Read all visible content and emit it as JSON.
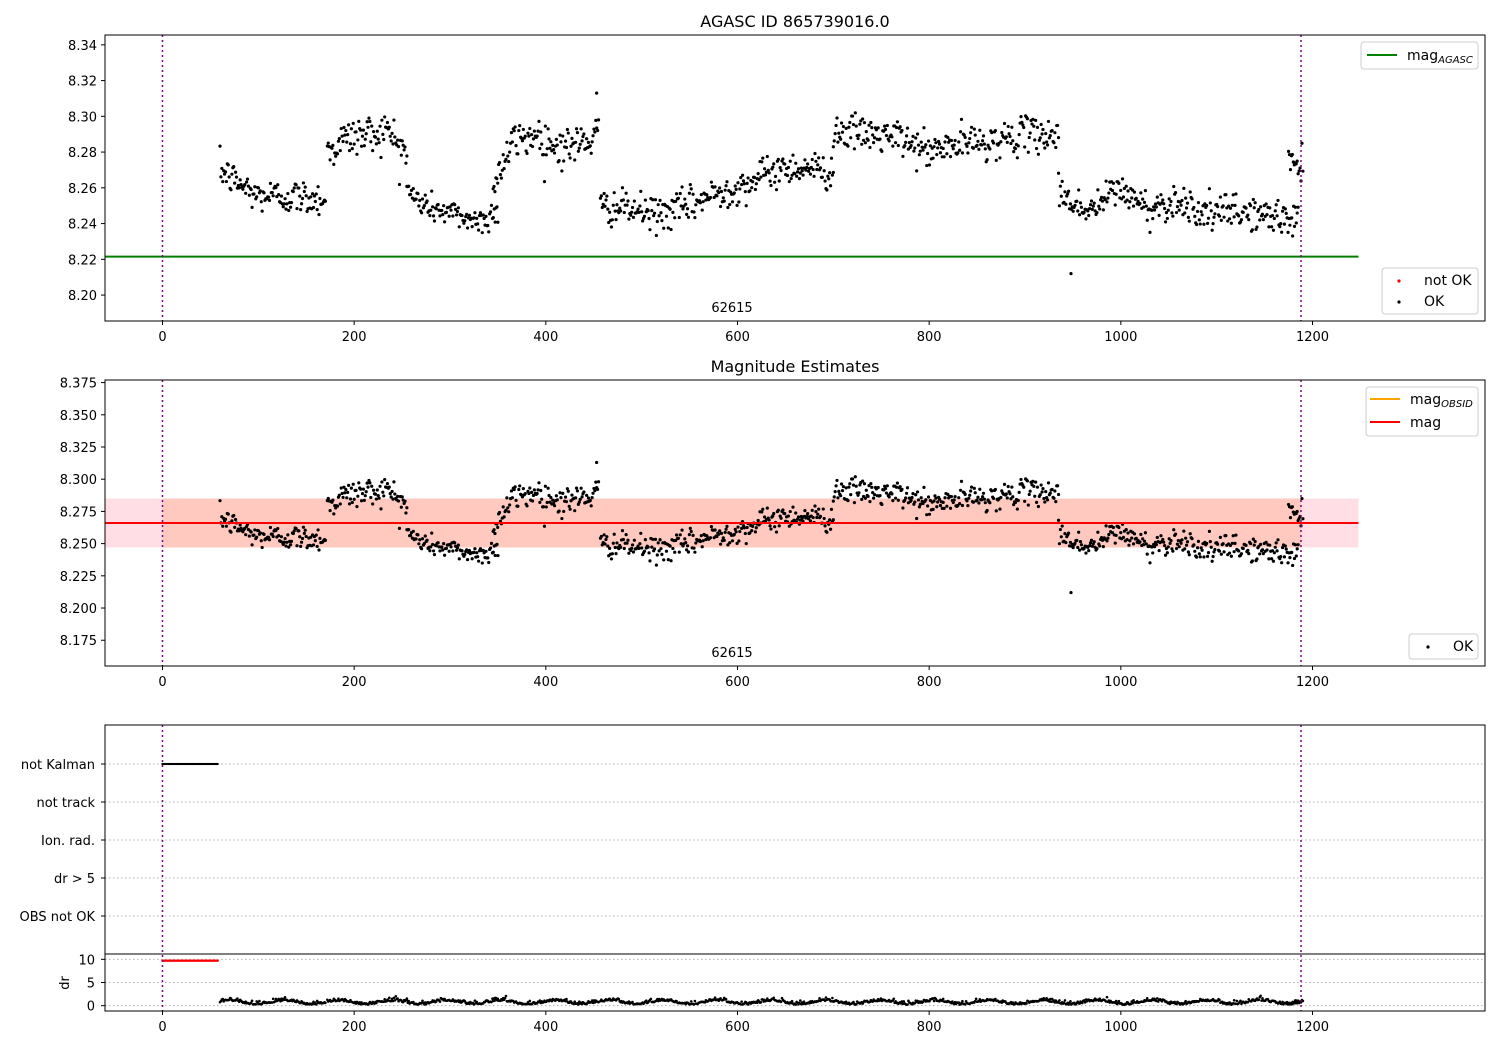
{
  "colors": {
    "agasc_line": "#008000",
    "obsid_line": "#ffa500",
    "mag_line": "#ff0000",
    "ok_points": "#000000",
    "not_ok_points": "#ff0000",
    "vline": "#800080",
    "band_outer": "#ffc0cb",
    "band_inner": "#ffa07a",
    "grid": "#b0b0b0"
  },
  "chart_data": [
    {
      "type": "scatter",
      "title": "AGASC ID 865739016.0",
      "xlim": [
        -60,
        1380
      ],
      "ylim": [
        8.1855,
        8.3455
      ],
      "x_ticks": [
        0,
        200,
        400,
        600,
        800,
        1000,
        1200
      ],
      "y_ticks": [
        "8.20",
        "8.22",
        "8.24",
        "8.26",
        "8.28",
        "8.30",
        "8.32",
        "8.34"
      ],
      "obsid_label": "62615",
      "obsid_label_x": 593,
      "vlines_x": [
        0,
        1188
      ],
      "hline": {
        "name": "mag_AGASC",
        "y": 8.2215,
        "x_range": [
          -60,
          1248
        ]
      },
      "legend_top": [
        "mag",
        "AGASC"
      ],
      "legend_bottom": [
        "not OK",
        "OK"
      ],
      "grid": false,
      "legend_placement": "upper-right and lower-right",
      "segments": [
        {
          "x": [
            60,
            170
          ],
          "levels": [
            8.27,
            8.256,
            8.255,
            8.254
          ],
          "noise": 0.006
        },
        {
          "x": [
            172,
            255
          ],
          "levels": [
            8.28,
            8.288,
            8.29,
            8.292,
            8.28
          ],
          "noise": 0.007
        },
        {
          "x": [
            255,
            350
          ],
          "levels": [
            8.258,
            8.25,
            8.247,
            8.244,
            8.241,
            8.247
          ],
          "noise": 0.005
        },
        {
          "x": [
            345,
            455
          ],
          "levels": [
            8.262,
            8.286,
            8.29,
            8.283,
            8.284,
            8.29
          ],
          "noise": 0.007
        },
        {
          "x": [
            457,
            700
          ],
          "levels": [
            8.25,
            8.248,
            8.245,
            8.25,
            8.257,
            8.262,
            8.27,
            8.272,
            8.268
          ],
          "noise": 0.006
        },
        {
          "x": [
            700,
            935
          ],
          "levels": [
            8.292,
            8.29,
            8.288,
            8.28,
            8.285,
            8.286,
            8.29,
            8.29
          ],
          "noise": 0.006
        },
        {
          "x": [
            935,
            1185
          ],
          "levels": [
            8.258,
            8.246,
            8.26,
            8.248,
            8.253,
            8.245,
            8.247,
            8.244,
            8.242
          ],
          "noise": 0.006
        },
        {
          "x": [
            1175,
            1190
          ],
          "levels": [
            8.278,
            8.27
          ],
          "noise": 0.006
        }
      ],
      "outliers": [
        {
          "x": 948,
          "y": 8.212
        },
        {
          "x": 453,
          "y": 8.313
        }
      ]
    },
    {
      "type": "scatter",
      "title": "Magnitude Estimates",
      "xlim": [
        -60,
        1380
      ],
      "ylim": [
        8.155,
        8.377
      ],
      "x_ticks": [
        0,
        200,
        400,
        600,
        800,
        1000,
        1200
      ],
      "y_ticks": [
        "8.175",
        "8.200",
        "8.225",
        "8.250",
        "8.275",
        "8.300",
        "8.325",
        "8.350",
        "8.375"
      ],
      "obsid_label": "62615",
      "obsid_label_x": 593,
      "vlines_x": [
        0,
        1188
      ],
      "band_outer": {
        "y": [
          8.247,
          8.285
        ],
        "x_range": [
          -60,
          1248
        ]
      },
      "band_inner": {
        "y": [
          8.247,
          8.285
        ],
        "x_range": [
          0,
          1188
        ]
      },
      "mag_line": {
        "y": 8.266,
        "x_range": [
          -60,
          1248
        ]
      },
      "legend_top": [
        "mag",
        "OBSID",
        "mag"
      ],
      "legend_bottom": [
        "OK"
      ],
      "grid": false,
      "legend_placement": "upper-right and lower-right"
    },
    {
      "type": "scatter",
      "xlim": [
        -60,
        1380
      ],
      "flag_labels": [
        "not Kalman",
        "not track",
        "Ion. rad.",
        "dr > 5",
        "OBS not OK"
      ],
      "flag_not_kalman_x": [
        0,
        58
      ],
      "dr_ticks": [
        "10",
        "5",
        "0"
      ],
      "dr_label": "dr",
      "dr_ylim": [
        -0.5,
        10.5
      ],
      "dr_red": {
        "x": [
          0,
          58
        ],
        "y": 9.7
      },
      "x_ticks": [
        0,
        200,
        400,
        600,
        800,
        1000,
        1200
      ],
      "vlines_x": [
        0,
        1188
      ],
      "grid": true
    }
  ]
}
